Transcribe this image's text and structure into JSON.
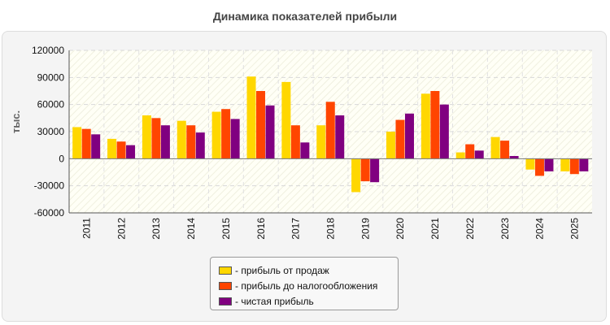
{
  "chart_data": {
    "type": "bar",
    "title": "Динамика показателей прибыли",
    "xlabel": "",
    "ylabel": "тыс.",
    "ylim": [
      -60000,
      120000
    ],
    "yticks": [
      "120000",
      "90000",
      "60000",
      "30000",
      "0",
      "-30000",
      "-60000"
    ],
    "categories": [
      "2011",
      "2012",
      "2013",
      "2014",
      "2015",
      "2016",
      "2017",
      "2018",
      "2019",
      "2020",
      "2021",
      "2022",
      "2023",
      "2024",
      "2025"
    ],
    "grid": true,
    "legend_position": "bottom-center",
    "series": [
      {
        "name": "- прибыль от продаж",
        "color": "#ffd700",
        "values": [
          35000,
          22000,
          48000,
          42000,
          52000,
          91000,
          85000,
          37000,
          -37000,
          30000,
          72000,
          7000,
          24000,
          -12000,
          -14000
        ]
      },
      {
        "name": "- прибыль до налогообложения",
        "color": "#ff4500",
        "values": [
          33000,
          19000,
          45000,
          37000,
          55000,
          75000,
          37000,
          63000,
          -25000,
          43000,
          75000,
          16000,
          20000,
          -19000,
          -17000
        ]
      },
      {
        "name": "- чистая прибыль",
        "color": "#800080",
        "values": [
          27000,
          15000,
          37000,
          29000,
          44000,
          59000,
          18000,
          48000,
          -26000,
          50000,
          60000,
          9000,
          3000,
          -14000,
          -14000
        ]
      }
    ]
  }
}
